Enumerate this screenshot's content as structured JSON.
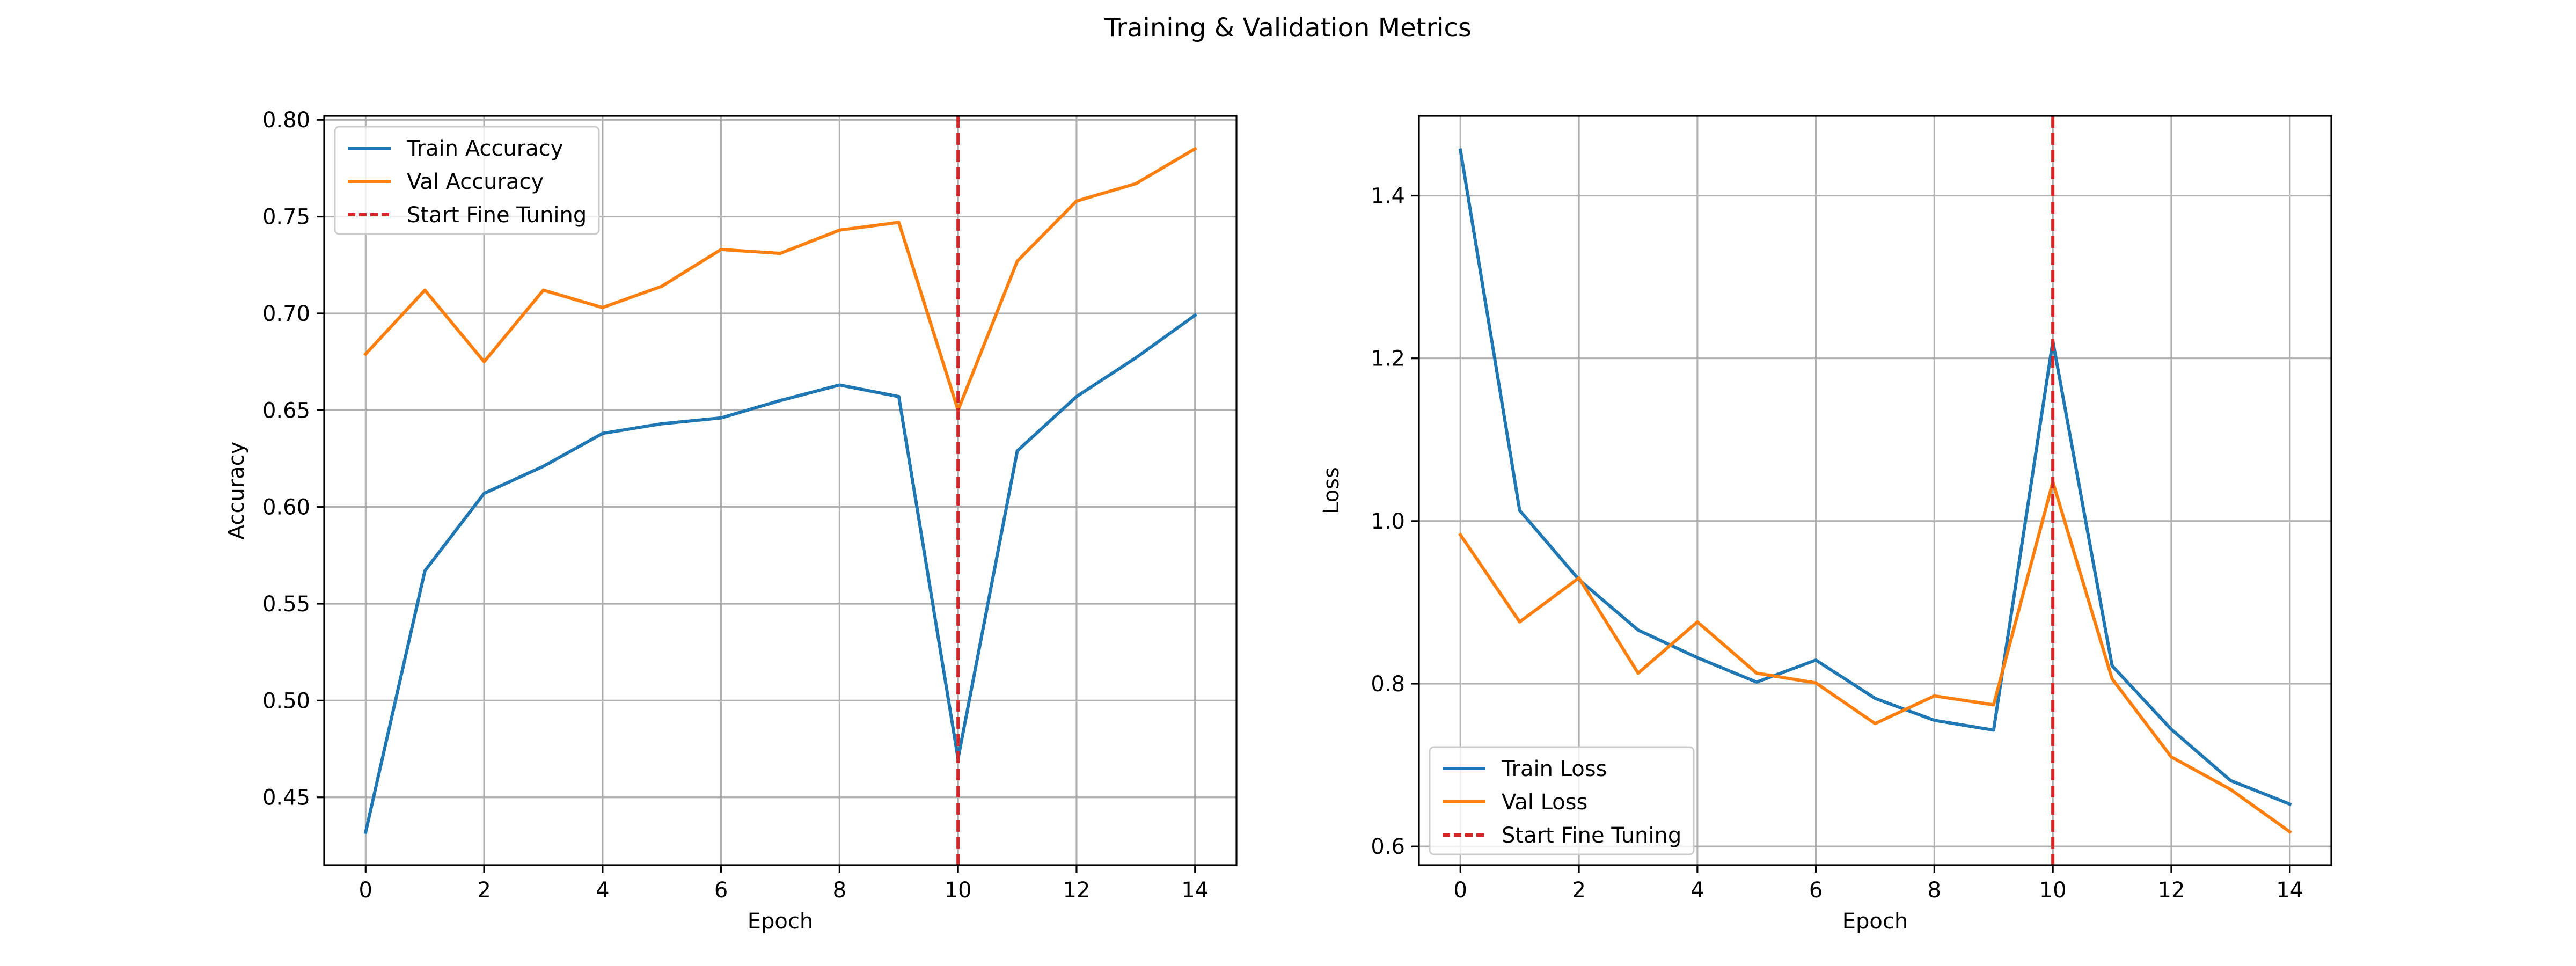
{
  "figure": {
    "suptitle": "Training & Validation Metrics"
  },
  "chart_data": [
    {
      "type": "line",
      "xlabel": "Epoch",
      "ylabel": "Accuracy",
      "xlim": [
        -0.7,
        14.7
      ],
      "ylim": [
        0.415,
        0.802
      ],
      "xticks": [
        0,
        2,
        4,
        6,
        8,
        10,
        12,
        14
      ],
      "xtick_labels": [
        "0",
        "2",
        "4",
        "6",
        "8",
        "10",
        "12",
        "14"
      ],
      "yticks": [
        0.45,
        0.5,
        0.55,
        0.6,
        0.65,
        0.7,
        0.75,
        0.8
      ],
      "ytick_labels": [
        "0.45",
        "0.50",
        "0.55",
        "0.60",
        "0.65",
        "0.70",
        "0.75",
        "0.80"
      ],
      "grid": true,
      "legend_position": "top-left",
      "x": [
        0,
        1,
        2,
        3,
        4,
        5,
        6,
        7,
        8,
        9,
        10,
        11,
        12,
        13,
        14
      ],
      "series": [
        {
          "name": "Train Accuracy",
          "color": "#1f77b4",
          "style": "solid",
          "values": [
            0.432,
            0.567,
            0.607,
            0.621,
            0.638,
            0.643,
            0.646,
            0.655,
            0.663,
            0.657,
            0.47,
            0.629,
            0.657,
            0.677,
            0.699
          ]
        },
        {
          "name": "Val Accuracy",
          "color": "#ff7f0e",
          "style": "solid",
          "values": [
            0.679,
            0.712,
            0.675,
            0.712,
            0.703,
            0.714,
            0.733,
            0.731,
            0.743,
            0.747,
            0.65,
            0.727,
            0.758,
            0.767,
            0.785
          ]
        }
      ],
      "vlines": [
        {
          "name": "Start Fine Tuning",
          "x": 10,
          "color": "#d62728",
          "style": "dashed"
        }
      ]
    },
    {
      "type": "line",
      "xlabel": "Epoch",
      "ylabel": "Loss",
      "xlim": [
        -0.7,
        14.7
      ],
      "ylim": [
        0.577,
        1.498
      ],
      "xticks": [
        0,
        2,
        4,
        6,
        8,
        10,
        12,
        14
      ],
      "xtick_labels": [
        "0",
        "2",
        "4",
        "6",
        "8",
        "10",
        "12",
        "14"
      ],
      "yticks": [
        0.6,
        0.8,
        1.0,
        1.2,
        1.4
      ],
      "ytick_labels": [
        "0.6",
        "0.8",
        "1.0",
        "1.2",
        "1.4"
      ],
      "grid": true,
      "legend_position": "bottom-left",
      "x": [
        0,
        1,
        2,
        3,
        4,
        5,
        6,
        7,
        8,
        9,
        10,
        11,
        12,
        13,
        14
      ],
      "series": [
        {
          "name": "Train Loss",
          "color": "#1f77b4",
          "style": "solid",
          "values": [
            1.456,
            1.013,
            0.928,
            0.866,
            0.832,
            0.802,
            0.829,
            0.782,
            0.755,
            0.743,
            1.221,
            0.822,
            0.744,
            0.681,
            0.652
          ]
        },
        {
          "name": "Val Loss",
          "color": "#ff7f0e",
          "style": "solid",
          "values": [
            0.983,
            0.876,
            0.93,
            0.813,
            0.876,
            0.813,
            0.801,
            0.751,
            0.785,
            0.774,
            1.048,
            0.806,
            0.71,
            0.67,
            0.618
          ]
        }
      ],
      "vlines": [
        {
          "name": "Start Fine Tuning",
          "x": 10,
          "color": "#d62728",
          "style": "dashed"
        }
      ]
    }
  ]
}
